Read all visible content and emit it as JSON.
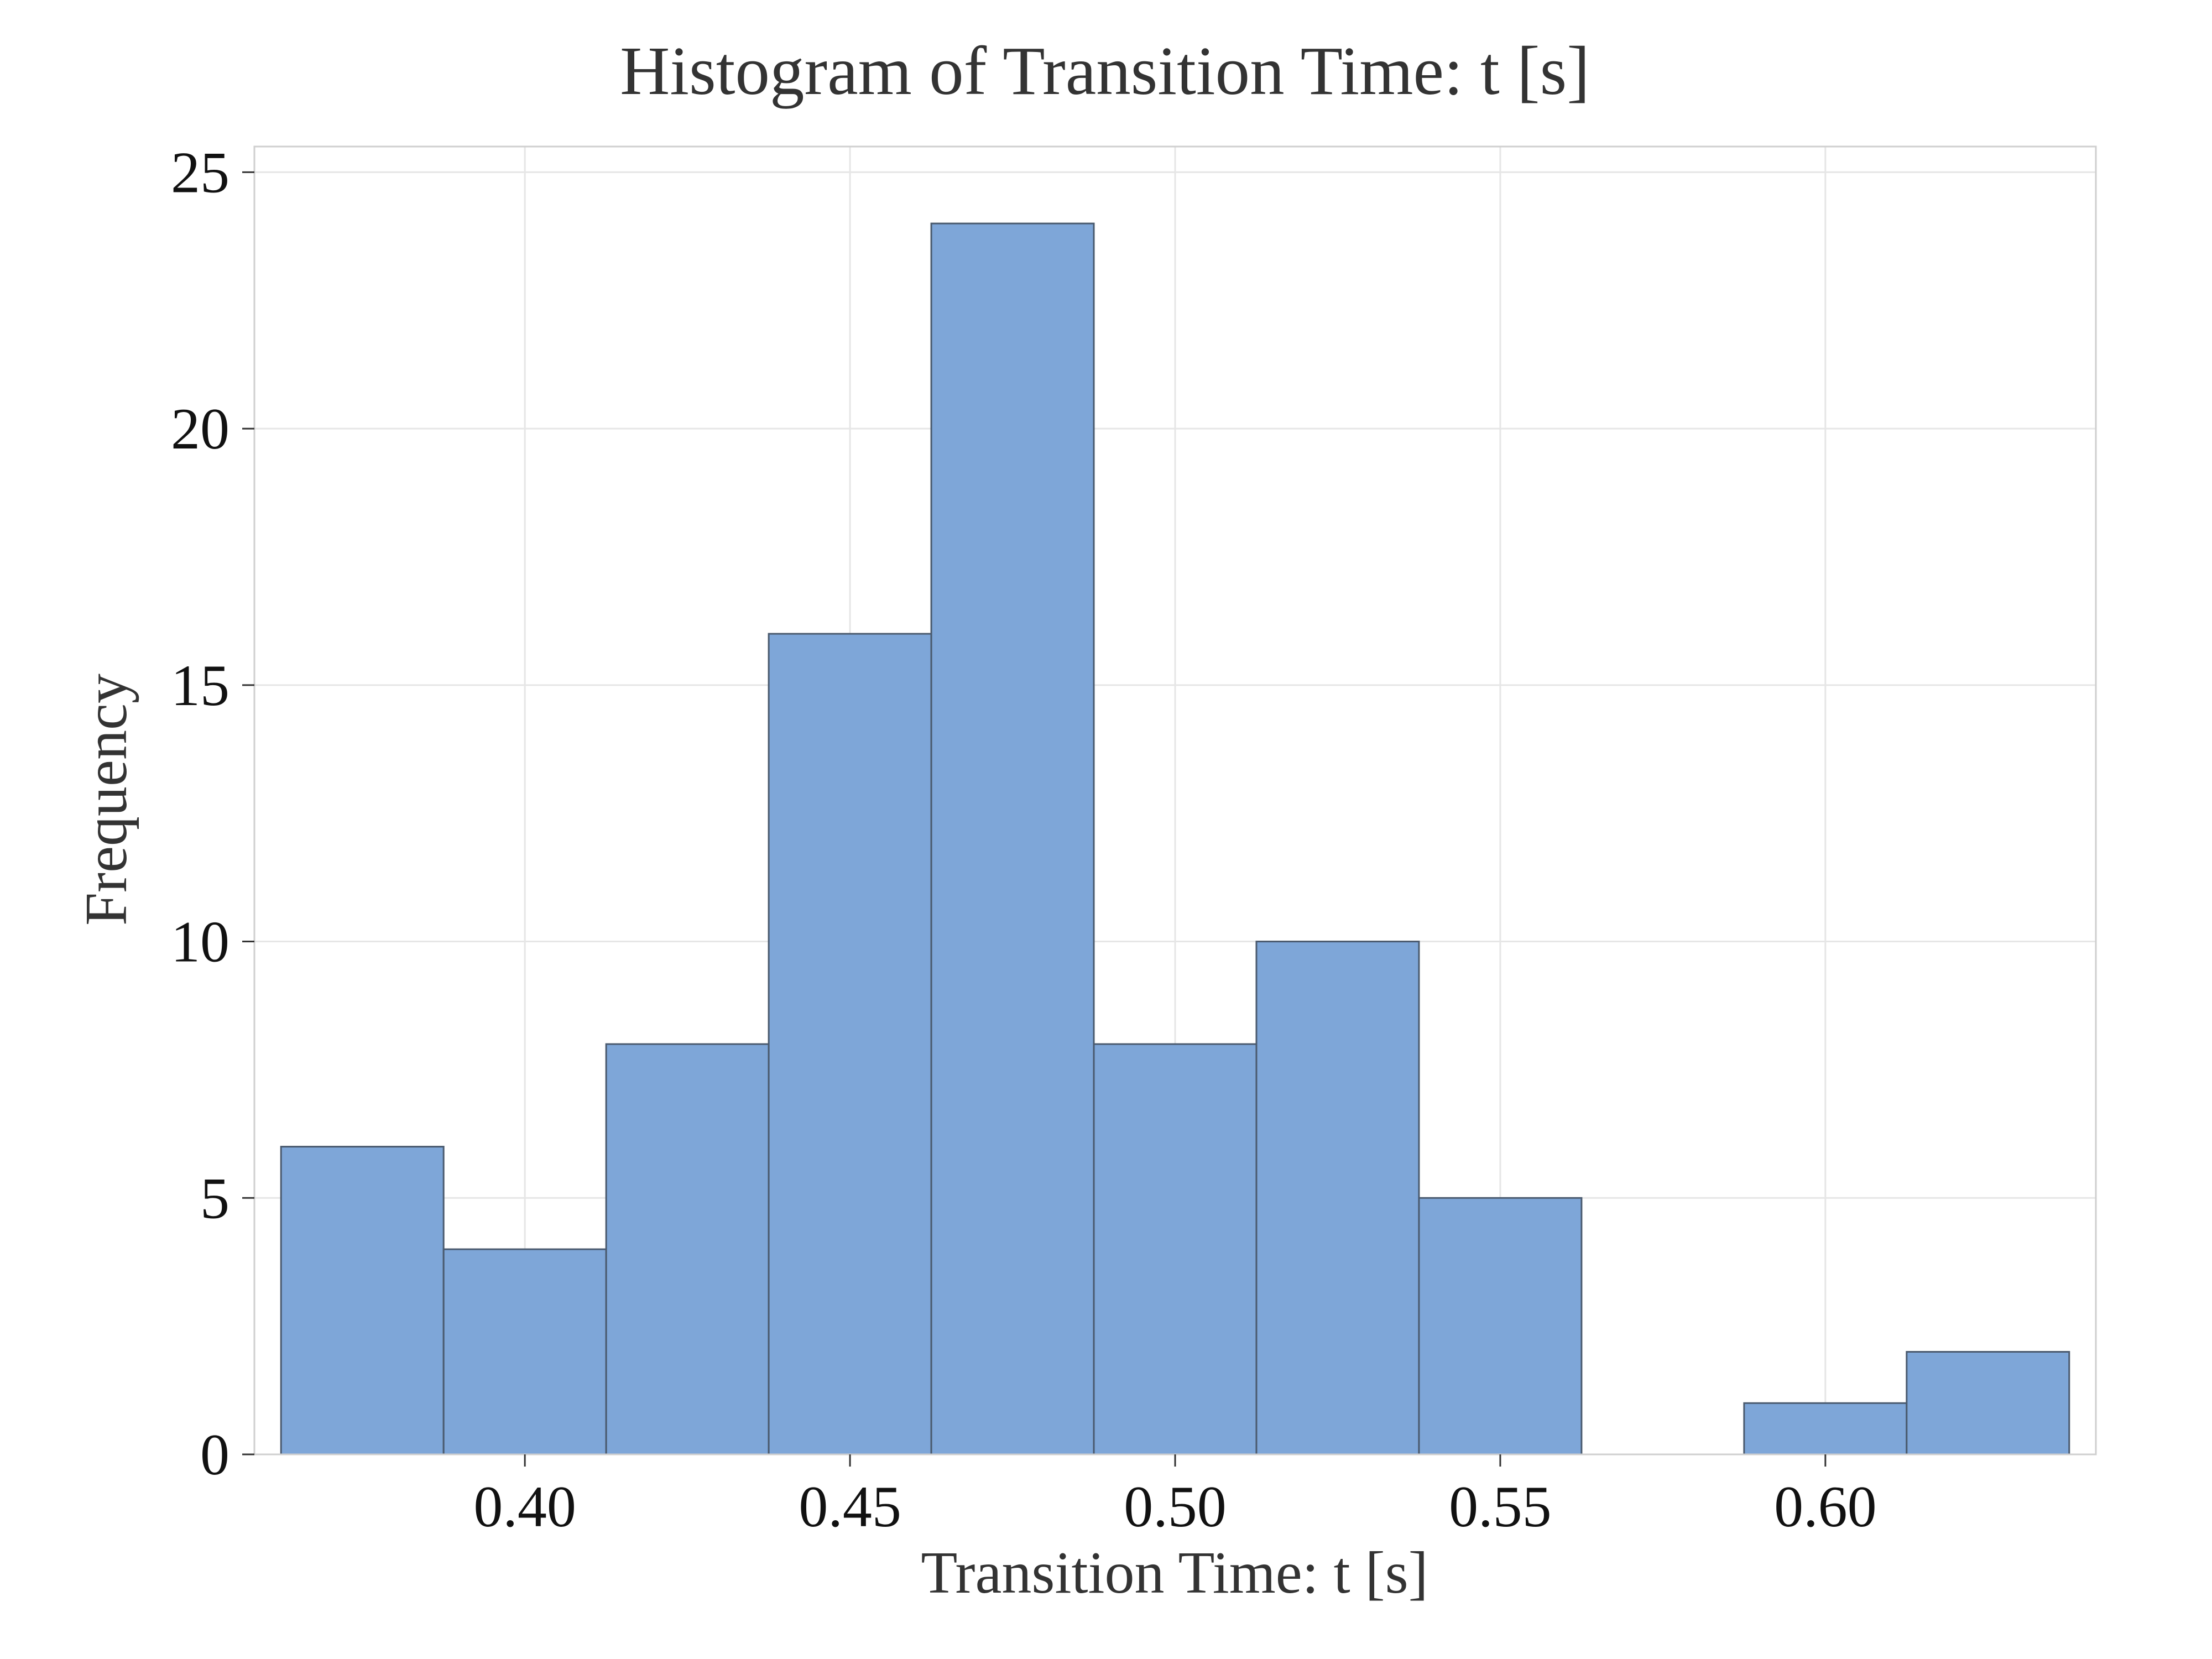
{
  "chart_data": {
    "type": "bar",
    "title": "Histogram of Transition Time: t [s]",
    "xlabel": "Transition Time: t [s]",
    "ylabel": "Frequency",
    "bins": [
      {
        "x0": 0.3625,
        "x1": 0.3875,
        "count": 6
      },
      {
        "x0": 0.3875,
        "x1": 0.4125,
        "count": 4
      },
      {
        "x0": 0.4125,
        "x1": 0.4375,
        "count": 8
      },
      {
        "x0": 0.4375,
        "x1": 0.4625,
        "count": 16
      },
      {
        "x0": 0.4625,
        "x1": 0.4875,
        "count": 24
      },
      {
        "x0": 0.4875,
        "x1": 0.5125,
        "count": 8
      },
      {
        "x0": 0.5125,
        "x1": 0.5375,
        "count": 10
      },
      {
        "x0": 0.5375,
        "x1": 0.5625,
        "count": 5
      },
      {
        "x0": 0.5625,
        "x1": 0.5875,
        "count": 0
      },
      {
        "x0": 0.5875,
        "x1": 0.6125,
        "count": 1
      },
      {
        "x0": 0.6125,
        "x1": 0.6375,
        "count": 2
      }
    ],
    "xlim": [
      0.3584,
      0.6416
    ],
    "ylim": [
      0,
      25.5
    ],
    "xticks": [
      0.4,
      0.45,
      0.5,
      0.55,
      0.6
    ],
    "xtick_labels": [
      "0.40",
      "0.45",
      "0.50",
      "0.55",
      "0.60"
    ],
    "yticks": [
      0,
      5,
      10,
      15,
      20,
      25
    ],
    "ytick_labels": [
      "0",
      "5",
      "10",
      "15",
      "20",
      "25"
    ],
    "grid": true,
    "bar_color": "#7ea6d8",
    "bar_edge_color": "#4a5a6e"
  }
}
